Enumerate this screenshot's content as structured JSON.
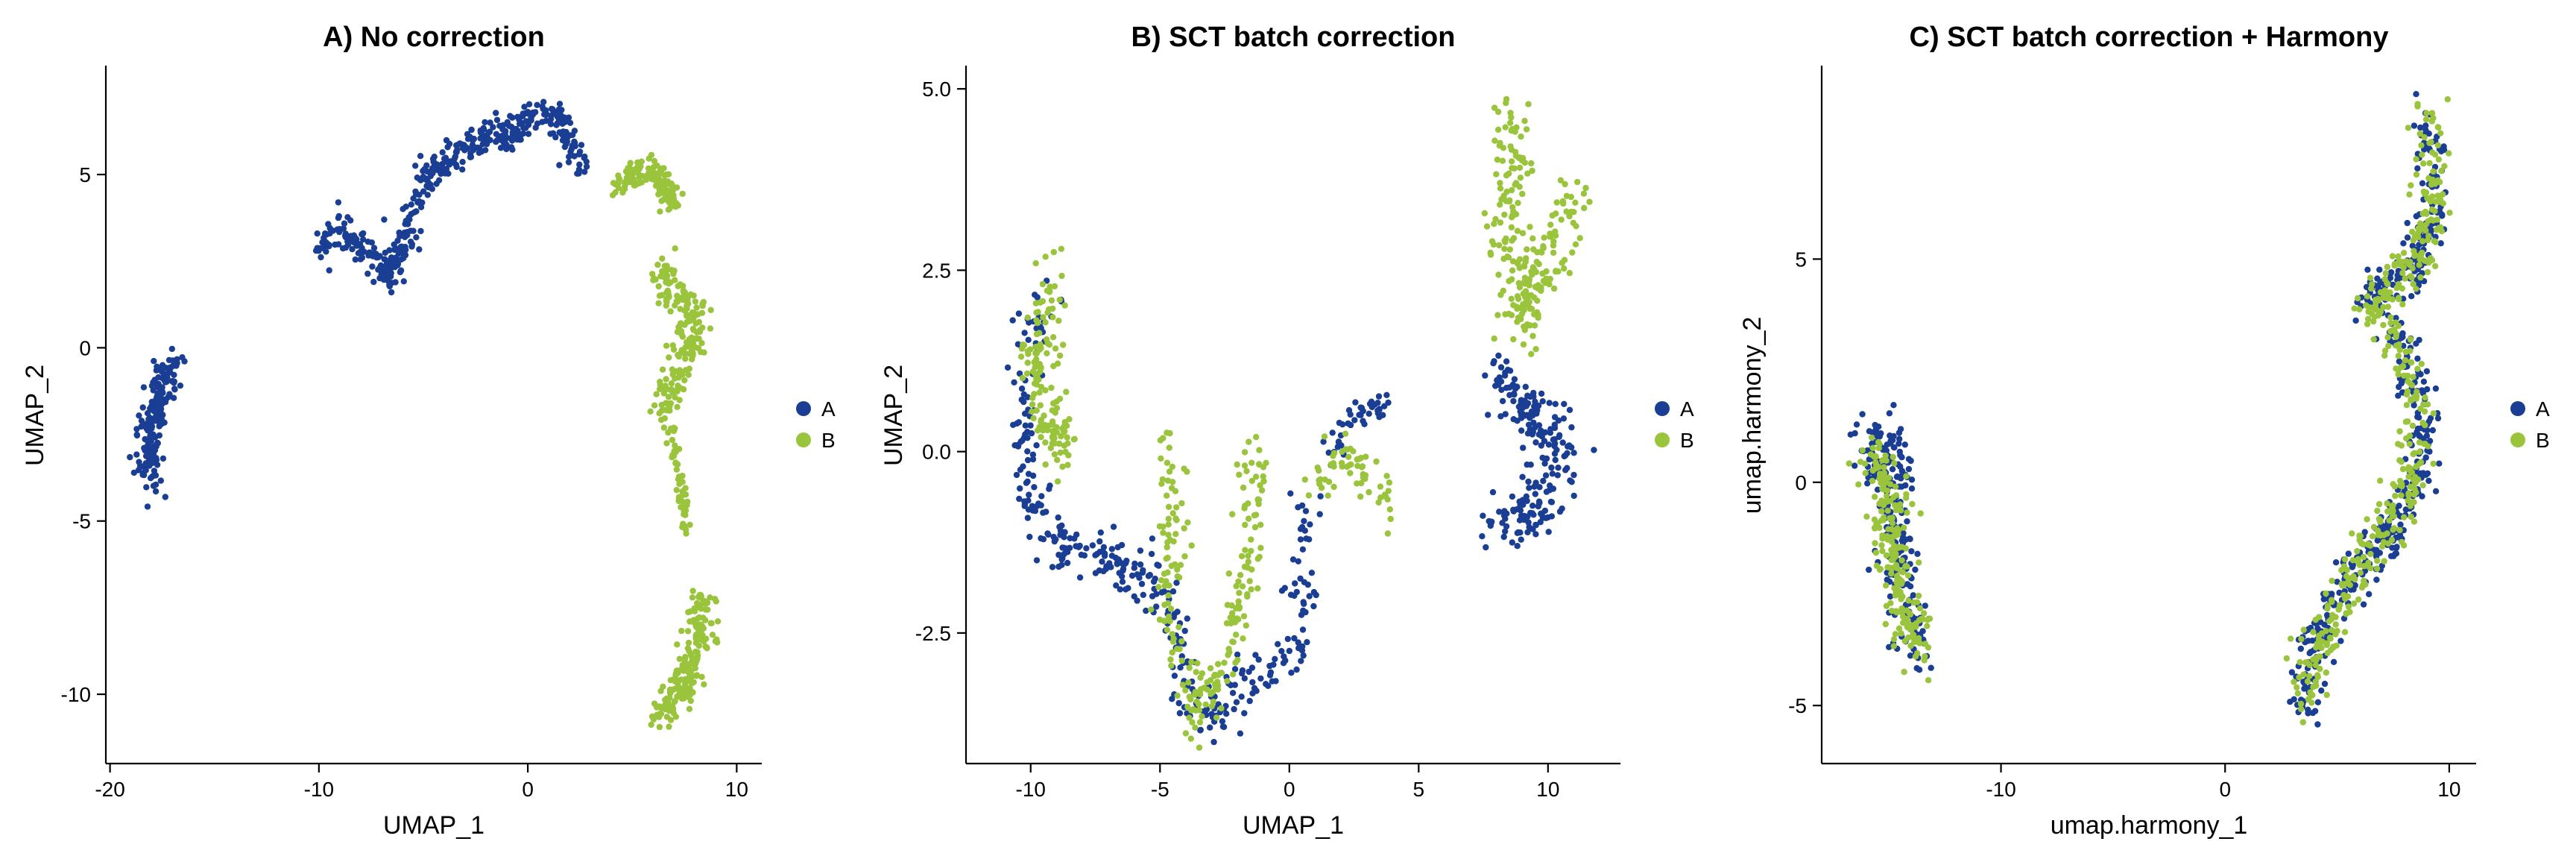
{
  "colors": {
    "A": "#1A3E93",
    "B": "#9AC43C"
  },
  "chart_data": [
    {
      "type": "scatter",
      "title": "A) No correction",
      "xlabel": "UMAP_1",
      "ylabel": "UMAP_2",
      "xlim": [
        -20.2,
        11.2
      ],
      "ylim": [
        -12.0,
        8.1
      ],
      "xticks": [
        -20,
        -10,
        0,
        10
      ],
      "xtick_labels": [
        "-20",
        "-10",
        "0",
        "10"
      ],
      "yticks": [
        -10,
        -5,
        0,
        5
      ],
      "ytick_labels": [
        "-10",
        "-5",
        "0",
        "5"
      ],
      "legend": {
        "position": "right",
        "entries": [
          "A",
          "B"
        ]
      },
      "grid": false,
      "series": [
        {
          "name": "A",
          "color": "#1A3E93",
          "clusters": [
            {
              "path": [
                [
                  -18.0,
                  -3.9
                ],
                [
                  -18.2,
                  -3.0
                ],
                [
                  -17.8,
                  -1.8
                ],
                [
                  -17.4,
                  -0.9
                ],
                [
                  -17.0,
                  -0.5
                ]
              ],
              "count": 190,
              "spread": 0.55,
              "spreadY": 0.5
            },
            {
              "path": [
                [
                  -10.0,
                  2.8
                ],
                [
                  -9.0,
                  3.6
                ],
                [
                  -7.6,
                  2.7
                ],
                [
                  -6.5,
                  2.0
                ],
                [
                  -5.6,
                  3.6
                ],
                [
                  -4.8,
                  5.0
                ],
                [
                  -3.5,
                  5.6
                ],
                [
                  -1.8,
                  6.2
                ],
                [
                  -0.8,
                  6.0
                ],
                [
                  0.4,
                  6.9
                ],
                [
                  1.5,
                  6.6
                ],
                [
                  2.6,
                  5.1
                ]
              ],
              "count": 470,
              "spread": 0.5,
              "spreadY": 0.4
            }
          ]
        },
        {
          "name": "B",
          "color": "#9AC43C",
          "clusters": [
            {
              "path": [
                [
                  4.4,
                  4.7
                ],
                [
                  5.5,
                  5.2
                ],
                [
                  6.5,
                  4.9
                ],
                [
                  7.0,
                  4.0
                ]
              ],
              "count": 150,
              "spread": 0.45,
              "spreadY": 0.35
            },
            {
              "path": [
                [
                  6.2,
                  2.3
                ],
                [
                  7.0,
                  1.6
                ],
                [
                  8.2,
                  0.9
                ],
                [
                  7.2,
                  -0.5
                ],
                [
                  6.8,
                  -1.4
                ],
                [
                  6.5,
                  -2.0
                ]
              ],
              "count": 200,
              "spread": 0.7,
              "spreadY": 0.55
            },
            {
              "path": [
                [
                  6.9,
                  -2.4
                ],
                [
                  7.2,
                  -3.6
                ],
                [
                  7.5,
                  -4.7
                ],
                [
                  7.6,
                  -5.4
                ]
              ],
              "count": 45,
              "spread": 0.2,
              "spreadY": 0.3
            },
            {
              "path": [
                [
                  8.4,
                  -7.2
                ],
                [
                  8.1,
                  -8.4
                ],
                [
                  7.5,
                  -9.6
                ],
                [
                  6.4,
                  -10.7
                ]
              ],
              "count": 190,
              "spread": 0.65,
              "spreadY": 0.4
            }
          ]
        }
      ]
    },
    {
      "type": "scatter",
      "title": "B) SCT batch correction",
      "xlabel": "UMAP_1",
      "ylabel": "UMAP_2",
      "xlim": [
        -12.5,
        12.8
      ],
      "ylim": [
        -4.3,
        5.3
      ],
      "xticks": [
        -10,
        -5,
        0,
        5,
        10
      ],
      "xtick_labels": [
        "-10",
        "-5",
        "0",
        "5",
        "10"
      ],
      "yticks": [
        -2.5,
        0,
        2.5,
        5
      ],
      "ytick_labels": [
        "-2.5",
        "0.0",
        "2.5",
        "5.0"
      ],
      "legend": {
        "position": "right",
        "entries": [
          "A",
          "B"
        ]
      },
      "grid": false,
      "series": [
        {
          "name": "A",
          "color": "#1A3E93",
          "clusters": [
            {
              "path": [
                [
                  -9.3,
                  2.3
                ],
                [
                  -10.3,
                  1.0
                ],
                [
                  -10.1,
                  -0.7
                ],
                [
                  -8.8,
                  -1.3
                ],
                [
                  -7.2,
                  -1.5
                ],
                [
                  -5.5,
                  -1.7
                ],
                [
                  -4.2,
                  -2.5
                ],
                [
                  -3.8,
                  -3.4
                ],
                [
                  -3.0,
                  -3.7
                ],
                [
                  -1.7,
                  -3.2
                ],
                [
                  -0.6,
                  -3.0
                ],
                [
                  0.2,
                  -2.6
                ],
                [
                  0.6,
                  -1.7
                ],
                [
                  0.6,
                  -0.7
                ]
              ],
              "count": 360,
              "spread": 0.6,
              "spreadY": 0.33
            },
            {
              "path": [
                [
                  1.2,
                  -0.2
                ],
                [
                  2.2,
                  0.4
                ],
                [
                  3.3,
                  0.7
                ],
                [
                  3.8,
                  0.6
                ]
              ],
              "count": 45,
              "spread": 0.4,
              "spreadY": 0.2
            },
            {
              "path": [
                [
                  8.0,
                  1.0
                ],
                [
                  9.2,
                  0.6
                ],
                [
                  10.3,
                  0.2
                ],
                [
                  9.6,
                  -0.8
                ],
                [
                  8.3,
                  -1.0
                ]
              ],
              "count": 210,
              "spread": 0.95,
              "spreadY": 0.35
            }
          ]
        },
        {
          "name": "B",
          "color": "#9AC43C",
          "clusters": [
            {
              "path": [
                [
                  -9.2,
                  2.5
                ],
                [
                  -9.8,
                  1.3
                ],
                [
                  -9.5,
                  0.5
                ],
                [
                  -8.6,
                  -0.2
                ]
              ],
              "count": 140,
              "spread": 0.6,
              "spreadY": 0.35
            },
            {
              "path": [
                [
                  -4.8,
                  0.3
                ],
                [
                  -4.5,
                  -0.8
                ],
                [
                  -4.6,
                  -2.2
                ],
                [
                  -3.6,
                  -3.7
                ],
                [
                  -2.4,
                  -2.8
                ],
                [
                  -1.6,
                  -1.5
                ],
                [
                  -1.3,
                  -0.3
                ],
                [
                  -1.2,
                  0.1
                ]
              ],
              "count": 220,
              "spread": 0.55,
              "spreadY": 0.35
            },
            {
              "path": [
                [
                  1.0,
                  -0.4
                ],
                [
                  2.2,
                  -0.1
                ],
                [
                  3.2,
                  -0.4
                ],
                [
                  3.8,
                  -0.7
                ]
              ],
              "count": 60,
              "spread": 0.45,
              "spreadY": 0.3
            },
            {
              "path": [
                [
                  8.4,
                  4.7
                ],
                [
                  8.8,
                  3.8
                ],
                [
                  8.2,
                  3.0
                ],
                [
                  9.2,
                  2.2
                ],
                [
                  8.8,
                  1.6
                ],
                [
                  10.5,
                  3.2
                ],
                [
                  11.2,
                  3.6
                ]
              ],
              "count": 240,
              "spread": 0.7,
              "spreadY": 0.35
            }
          ]
        }
      ]
    },
    {
      "type": "scatter",
      "title": "C) SCT batch correction + Harmony",
      "xlabel": "umap.harmony_1",
      "ylabel": "umap.harmony_2",
      "xlim": [
        -18.0,
        11.2
      ],
      "ylim": [
        -6.3,
        9.3
      ],
      "xticks": [
        -10,
        0,
        10
      ],
      "xtick_labels": [
        "-10",
        "0",
        "10"
      ],
      "yticks": [
        -5,
        0,
        5
      ],
      "ytick_labels": [
        "-5",
        "0",
        "5"
      ],
      "legend": {
        "position": "right",
        "entries": [
          "A",
          "B"
        ]
      },
      "grid": false,
      "series": [
        {
          "name": "A",
          "color": "#1A3E93",
          "clusters": [
            {
              "path": [
                [
                  -16.2,
                  0.6
                ],
                [
                  -14.6,
                  0.8
                ],
                [
                  -15.0,
                  -1.0
                ],
                [
                  -14.0,
                  -2.6
                ],
                [
                  -13.9,
                  -4.0
                ]
              ],
              "count": 230,
              "spread": 0.75,
              "spreadY": 0.7
            },
            {
              "path": [
                [
                  3.6,
                  -5.3
                ],
                [
                  3.7,
                  -3.8
                ],
                [
                  4.6,
                  -2.9
                ],
                [
                  6.0,
                  -1.8
                ],
                [
                  7.4,
                  -1.2
                ],
                [
                  8.2,
                  -0.4
                ],
                [
                  8.8,
                  0.9
                ],
                [
                  8.6,
                  2.1
                ],
                [
                  7.9,
                  3.0
                ],
                [
                  7.0,
                  3.8
                ],
                [
                  6.5,
                  4.2
                ],
                [
                  8.3,
                  4.6
                ],
                [
                  9.2,
                  6.2
                ],
                [
                  9.0,
                  7.6
                ],
                [
                  9.3,
                  8.3
                ]
              ],
              "count": 480,
              "spread": 0.7,
              "spreadY": 0.5
            }
          ]
        },
        {
          "name": "B",
          "color": "#9AC43C",
          "clusters": [
            {
              "path": [
                [
                  -16.0,
                  0.4
                ],
                [
                  -14.8,
                  0.0
                ],
                [
                  -15.0,
                  -1.4
                ],
                [
                  -14.2,
                  -2.8
                ],
                [
                  -13.5,
                  -3.8
                ]
              ],
              "count": 220,
              "spread": 0.75,
              "spreadY": 0.7
            },
            {
              "path": [
                [
                  3.7,
                  -5.1
                ],
                [
                  3.9,
                  -4.0
                ],
                [
                  4.8,
                  -3.0
                ],
                [
                  6.2,
                  -1.6
                ],
                [
                  7.6,
                  -0.9
                ],
                [
                  8.5,
                  0.2
                ],
                [
                  8.6,
                  1.5
                ],
                [
                  8.1,
                  2.6
                ],
                [
                  7.2,
                  3.6
                ],
                [
                  6.6,
                  4.0
                ],
                [
                  8.4,
                  4.8
                ],
                [
                  9.2,
                  6.0
                ],
                [
                  9.3,
                  7.2
                ],
                [
                  9.2,
                  8.2
                ]
              ],
              "count": 450,
              "spread": 0.7,
              "spreadY": 0.5
            }
          ]
        }
      ]
    }
  ]
}
